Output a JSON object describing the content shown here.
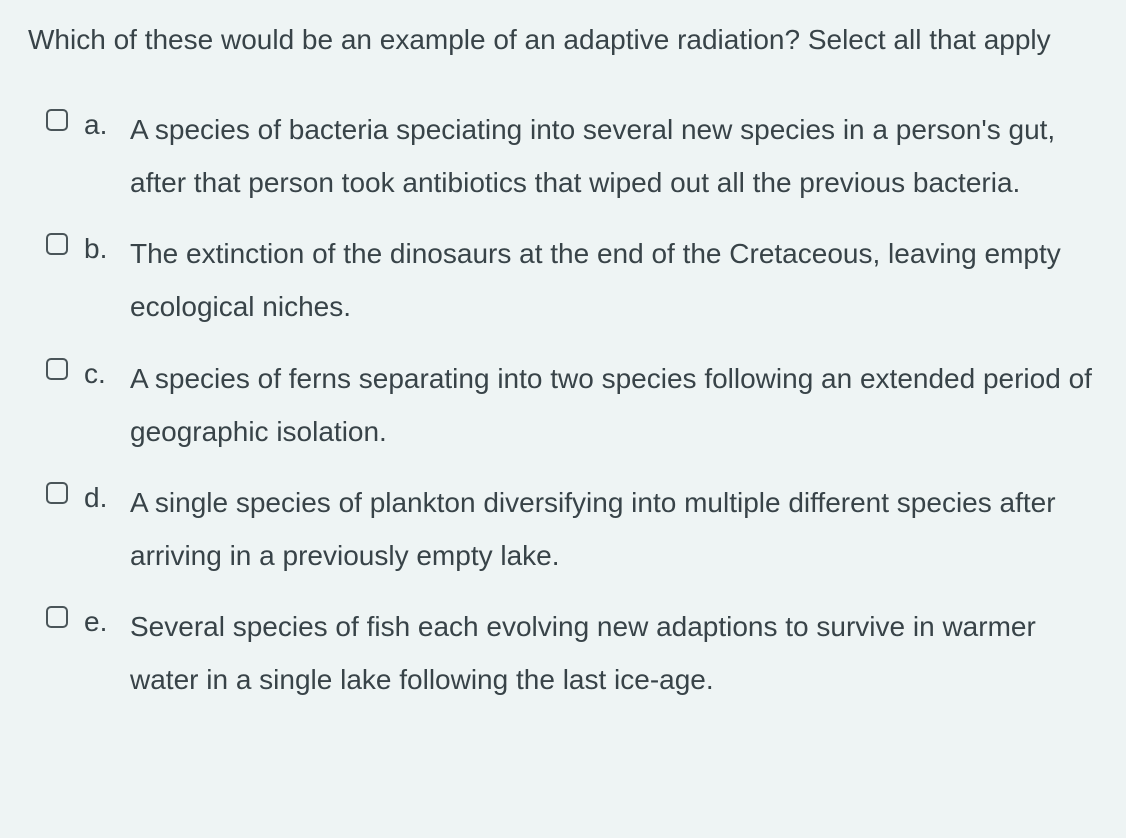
{
  "colors": {
    "background": "#eef4f4",
    "text": "#384348",
    "checkbox_border": "#4a5559"
  },
  "typography": {
    "font_family": "Arial, Helvetica, sans-serif",
    "question_fontsize": 28,
    "option_fontsize": 28,
    "line_height_question": 1.6,
    "line_height_option": 1.9
  },
  "question": {
    "text": "Which of these would be an example of an adaptive radiation? Select all that apply"
  },
  "options": [
    {
      "letter": "a.",
      "text": "A species of bacteria speciating into several new species in a person's gut, after that person took antibiotics that wiped out all the previous bacteria.",
      "checked": false
    },
    {
      "letter": "b.",
      "text": "The extinction of the dinosaurs at the end of the Cretaceous, leaving empty ecological niches.",
      "checked": false
    },
    {
      "letter": "c.",
      "text": "A species of ferns separating into two species following an extended period of geographic isolation.",
      "checked": false
    },
    {
      "letter": "d.",
      "text": "A single species of plankton diversifying into multiple different species after arriving in a previously empty lake.",
      "checked": false
    },
    {
      "letter": "e.",
      "text": "Several species of fish each evolving new adaptions to survive in warmer water in a single lake following the last ice-age.",
      "checked": false
    }
  ]
}
